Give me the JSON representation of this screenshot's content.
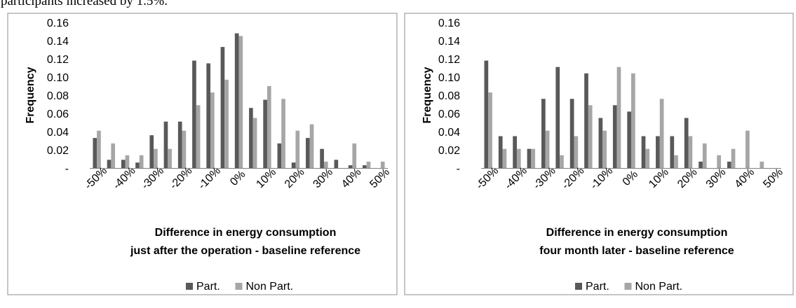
{
  "intro_text": "participants increased by 1.5%.",
  "colors": {
    "part": "#595959",
    "non_part": "#a6a6a6",
    "panel_border": "#8c8c8c",
    "axis": "#7f7f7f"
  },
  "chart_data": [
    {
      "type": "bar",
      "title": "",
      "ylabel": "Frequency",
      "xlabel_line1": "Difference in energy consumption",
      "xlabel_line2": "just after the operation - baseline reference",
      "ylim": [
        0,
        0.16
      ],
      "y_ticks": [
        "-",
        "0.02",
        "0.04",
        "0.06",
        "0.08",
        "0.10",
        "0.12",
        "0.14",
        "0.16"
      ],
      "x_ticks": [
        "-50%",
        "-40%",
        "-30%",
        "-20%",
        "-10%",
        "0%",
        "10%",
        "20%",
        "30%",
        "40%",
        "50%"
      ],
      "legend_position": "bottom",
      "categories": [
        "-50%",
        "-45%",
        "-40%",
        "-35%",
        "-30%",
        "-25%",
        "-20%",
        "-15%",
        "-10%",
        "-5%",
        "0%",
        "5%",
        "10%",
        "15%",
        "20%",
        "25%",
        "30%",
        "35%",
        "40%",
        "45%",
        "50%"
      ],
      "series": [
        {
          "name": "Part.",
          "values": [
            0.033,
            0.009,
            0.009,
            0.006,
            0.036,
            0.051,
            0.051,
            0.118,
            0.115,
            0.133,
            0.148,
            0.066,
            0.075,
            0.027,
            0.006,
            0.033,
            0.021,
            0.009,
            0.003,
            0.003,
            0
          ]
        },
        {
          "name": "Non Part.",
          "values": [
            0.041,
            0.027,
            0.014,
            0.014,
            0.021,
            0.021,
            0.041,
            0.069,
            0.083,
            0.097,
            0.145,
            0.055,
            0.09,
            0.076,
            0.041,
            0.048,
            0.007,
            0,
            0.027,
            0.007,
            0.007
          ]
        }
      ]
    },
    {
      "type": "bar",
      "title": "",
      "ylabel": "Frequency",
      "xlabel_line1": "Difference in energy consumption",
      "xlabel_line2": "four month later - baseline reference",
      "ylim": [
        0,
        0.16
      ],
      "y_ticks": [
        "-",
        "0.02",
        "0.04",
        "0.06",
        "0.08",
        "0.10",
        "0.12",
        "0.14",
        "0.16"
      ],
      "x_ticks": [
        "-50%",
        "-40%",
        "-30%",
        "-20%",
        "-10%",
        "0%",
        "10%",
        "20%",
        "30%",
        "40%",
        "50%"
      ],
      "legend_position": "bottom",
      "categories": [
        "-50%",
        "-45%",
        "-40%",
        "-35%",
        "-30%",
        "-25%",
        "-20%",
        "-15%",
        "-10%",
        "-5%",
        "0%",
        "5%",
        "10%",
        "15%",
        "20%",
        "25%",
        "30%",
        "35%",
        "40%",
        "45%",
        "50%"
      ],
      "series": [
        {
          "name": "Part.",
          "values": [
            0.118,
            0.035,
            0.035,
            0.021,
            0.076,
            0.111,
            0.076,
            0.104,
            0.055,
            0.069,
            0.062,
            0.035,
            0.035,
            0.035,
            0.055,
            0.007,
            0,
            0.007,
            0,
            0,
            0
          ]
        },
        {
          "name": "Non Part.",
          "values": [
            0.083,
            0.021,
            0.021,
            0.021,
            0.041,
            0.014,
            0.035,
            0.069,
            0.041,
            0.111,
            0.104,
            0.021,
            0.076,
            0.014,
            0.035,
            0.027,
            0.014,
            0.021,
            0.041,
            0.007,
            0
          ]
        }
      ]
    }
  ]
}
